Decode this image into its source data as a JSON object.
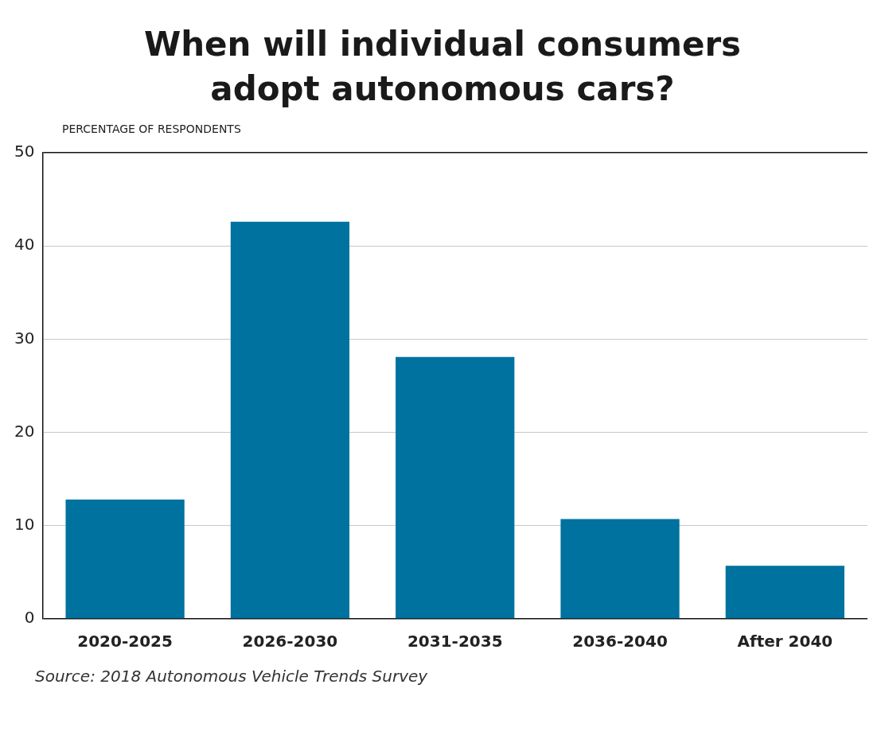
{
  "chart_data": {
    "type": "bar",
    "title": "When will individual consumers adopt autonomous cars?",
    "ylabel": "PERCENTAGE OF RESPONDENTS",
    "categories": [
      "2020-2025",
      "2026-2030",
      "2031-2035",
      "2036-2040",
      "After 2040"
    ],
    "values": [
      12.8,
      42.6,
      28.1,
      10.7,
      5.7
    ],
    "color": "#00729f",
    "ylim": [
      0,
      50
    ],
    "yticks": [
      0,
      10,
      20,
      30,
      40,
      50
    ],
    "grid": "y",
    "annotations": [
      "Source: 2018 Autonomous Vehicle Trends Survey"
    ]
  }
}
